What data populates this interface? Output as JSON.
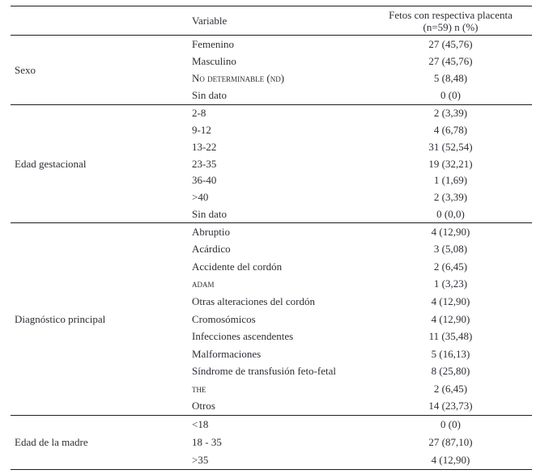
{
  "table": {
    "header": {
      "variable_label": "Variable",
      "value_label_line1": "Fetos con respectiva placenta",
      "value_label_line2": "(n=59) n (%)"
    },
    "sections": [
      {
        "group": "Sexo",
        "rows": [
          {
            "variable": "Femenino",
            "value": "27 (45,76)"
          },
          {
            "variable": "Masculino",
            "value": "27 (45,76)"
          },
          {
            "variable": "No determinable (nd)",
            "value": "5 (8,48)"
          },
          {
            "variable": "Sin dato",
            "value": "0 (0)"
          }
        ]
      },
      {
        "group": "Edad gestacional",
        "rows": [
          {
            "variable": "2-8",
            "value": "2 (3,39)"
          },
          {
            "variable": "9-12",
            "value": "4 (6,78)"
          },
          {
            "variable": "13-22",
            "value": "31 (52,54)"
          },
          {
            "variable": "23-35",
            "value": "19 (32,21)"
          },
          {
            "variable": "36-40",
            "value": "1 (1,69)"
          },
          {
            "variable": ">40",
            "value": "2 (3,39)"
          },
          {
            "variable": "Sin dato",
            "value": "0 (0,0)"
          }
        ]
      },
      {
        "group": "Diagnóstico principal",
        "rows": [
          {
            "variable": "Abruptio",
            "value": "4 (12,90)"
          },
          {
            "variable": "Acárdico",
            "value": "3 (5,08)"
          },
          {
            "variable": "Accidente del cordón",
            "value": "2 (6,45)"
          },
          {
            "variable": "adam",
            "value": "1 (3,23)"
          },
          {
            "variable": "Otras alteraciones del cordón",
            "value": "4 (12,90)"
          },
          {
            "variable": "Cromosómicos",
            "value": "4 (12,90)"
          },
          {
            "variable": "Infecciones ascendentes",
            "value": "11 (35,48)"
          },
          {
            "variable": "Malformaciones",
            "value": "5 (16,13)"
          },
          {
            "variable": "Síndrome de transfusión feto-fetal",
            "value": "8 (25,80)"
          },
          {
            "variable": "the",
            "value": "2 (6,45)"
          },
          {
            "variable": "Otros",
            "value": "14 (23,73)"
          }
        ]
      },
      {
        "group": "Edad de la madre",
        "rows": [
          {
            "variable": "<18",
            "value": "0 (0)"
          },
          {
            "variable": "18 - 35",
            "value": "27 (87,10)"
          },
          {
            "variable": ">35",
            "value": "4 (12,90)"
          }
        ]
      }
    ],
    "colors": {
      "text": "#2e2e36",
      "rule": "#1f1f1f",
      "background": "#ffffff"
    }
  }
}
